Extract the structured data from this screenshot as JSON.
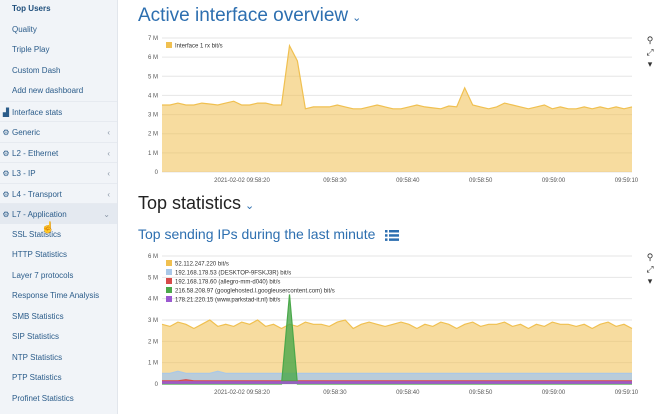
{
  "sidebar": {
    "items": [
      {
        "label": "Top Users",
        "kind": "top"
      },
      {
        "label": "Quality",
        "kind": "sub"
      },
      {
        "label": "Triple Play",
        "kind": "sub"
      },
      {
        "label": "Custom Dash",
        "kind": "sub"
      },
      {
        "label": "Add new dashboard",
        "kind": "sub"
      },
      {
        "label": "Interface stats",
        "kind": "grp",
        "icon": "chart-icon"
      },
      {
        "label": "Generic",
        "kind": "grp",
        "icon": "gear-icon",
        "chevron": "‹"
      },
      {
        "label": "L2 - Ethernet",
        "kind": "grp",
        "icon": "gear-icon",
        "chevron": "‹"
      },
      {
        "label": "L3 - IP",
        "kind": "grp",
        "icon": "gear-icon",
        "chevron": "‹"
      },
      {
        "label": "L4 - Transport",
        "kind": "grp",
        "icon": "gear-icon",
        "chevron": "‹"
      },
      {
        "label": "L7 - Application",
        "kind": "grp",
        "icon": "gear-icon",
        "chevron": "⌄",
        "active": true
      },
      {
        "label": "SSL Statistics",
        "kind": "sub"
      },
      {
        "label": "HTTP Statistics",
        "kind": "sub"
      },
      {
        "label": "Layer 7 protocols",
        "kind": "sub"
      },
      {
        "label": "Response Time Analysis",
        "kind": "sub"
      },
      {
        "label": "SMB Statistics",
        "kind": "sub"
      },
      {
        "label": "SIP Statistics",
        "kind": "sub"
      },
      {
        "label": "NTP Statistics",
        "kind": "sub"
      },
      {
        "label": "PTP Statistics",
        "kind": "sub"
      },
      {
        "label": "Profinet Statistics",
        "kind": "sub"
      }
    ]
  },
  "main": {
    "title": "Active interface overview",
    "top_stats_title": "Top statistics",
    "top_sending_title": "Top sending IPs during the last minute"
  },
  "tools": {
    "zoom": "⚲",
    "expand": "⤢",
    "menu": "▾"
  },
  "colors": {
    "accent": "#2d6fb0",
    "area_fill": "#fbe3a6",
    "area_line": "#f0c050"
  },
  "chart_data": [
    {
      "type": "area",
      "title": "",
      "yticks": [
        "0",
        "1 M",
        "2 M",
        "3 M",
        "4 M",
        "5 M",
        "6 M",
        "7 M"
      ],
      "ylim": [
        0,
        7
      ],
      "unit": "M bit/s",
      "xticks": [
        "2021-02-02 09:58:20",
        "09:58:30",
        "09:58:40",
        "09:58:50",
        "09:59:00",
        "09:59:10"
      ],
      "series": [
        {
          "name": "Interface 1 rx bit/s",
          "color": "#f0c050",
          "values": [
            3.5,
            3.5,
            3.6,
            3.5,
            3.5,
            3.6,
            3.55,
            3.5,
            3.6,
            3.7,
            3.5,
            3.5,
            3.6,
            3.6,
            3.5,
            3.5,
            6.6,
            5.8,
            3.3,
            3.4,
            3.4,
            3.4,
            3.5,
            3.4,
            3.3,
            3.3,
            3.4,
            3.5,
            3.4,
            3.3,
            3.3,
            3.4,
            3.5,
            3.4,
            3.35,
            3.3,
            3.45,
            3.4,
            4.4,
            3.5,
            3.4,
            3.3,
            3.4,
            3.6,
            3.5,
            3.4,
            3.3,
            3.4,
            3.5,
            3.3,
            3.4,
            3.3,
            3.3,
            3.4,
            3.3,
            3.4,
            3.3,
            3.4,
            3.3,
            3.4
          ]
        }
      ]
    },
    {
      "type": "area",
      "title": "",
      "yticks": [
        "0",
        "1 M",
        "2 M",
        "3 M",
        "4 M",
        "5 M",
        "6 M"
      ],
      "ylim": [
        0,
        6
      ],
      "unit": "M bit/s",
      "xticks": [
        "2021-02-02 09:58:20",
        "09:58:30",
        "09:58:40",
        "09:58:50",
        "09:59:00",
        "09:59:10"
      ],
      "series": [
        {
          "name": "52.112.247.220 bit/s",
          "color": "#f0c050",
          "values": [
            2.8,
            2.7,
            2.9,
            2.8,
            2.6,
            2.8,
            3.0,
            2.7,
            2.8,
            2.7,
            2.9,
            2.8,
            3.0,
            2.7,
            2.8,
            2.6,
            2.8,
            2.7,
            2.9,
            2.8,
            2.8,
            2.7,
            2.9,
            3.0,
            2.6,
            2.8,
            2.9,
            2.8,
            2.7,
            2.8,
            2.9,
            2.8,
            2.6,
            2.8,
            2.7,
            2.9,
            2.8,
            2.6,
            2.8,
            2.9,
            2.7,
            2.8,
            2.8,
            2.9,
            2.7,
            2.8,
            2.6,
            2.8,
            2.7,
            2.9,
            2.8,
            2.8,
            2.7,
            2.8,
            2.6,
            2.8,
            2.9,
            2.7,
            2.8,
            2.6
          ]
        },
        {
          "name": "192.168.178.53 (DESKTOP-9FSKJ3R) bit/s",
          "color": "#a9c8e8",
          "values": [
            0.5,
            0.5,
            0.6,
            0.5,
            0.5,
            0.5,
            0.5,
            0.6,
            0.5,
            0.5,
            0.5,
            0.5,
            0.5,
            0.5,
            0.5,
            0.5,
            0.5,
            0.5,
            0.5,
            0.5,
            0.5,
            0.5,
            0.5,
            0.5,
            0.5,
            0.5,
            0.5,
            0.5,
            0.5,
            0.5,
            0.5,
            0.5,
            0.5,
            0.5,
            0.5,
            0.5,
            0.5,
            0.5,
            0.5,
            0.5,
            0.5,
            0.5,
            0.5,
            0.5,
            0.5,
            0.5,
            0.5,
            0.5,
            0.5,
            0.5,
            0.5,
            0.5,
            0.5,
            0.5,
            0.5,
            0.5,
            0.5,
            0.5,
            0.5,
            0.5
          ]
        },
        {
          "name": "192.168.178.60 (allegro-mm-d040) bit/s",
          "color": "#d64a4a",
          "values": [
            0.15,
            0.15,
            0.15,
            0.2,
            0.15,
            0.15,
            0.15,
            0.15,
            0.15,
            0.15,
            0.15,
            0.15,
            0.15,
            0.15,
            0.15,
            0.15,
            0.15,
            0.15,
            0.15,
            0.15,
            0.15,
            0.15,
            0.15,
            0.15,
            0.15,
            0.15,
            0.15,
            0.15,
            0.15,
            0.15,
            0.15,
            0.15,
            0.15,
            0.15,
            0.15,
            0.15,
            0.15,
            0.15,
            0.15,
            0.15,
            0.15,
            0.15,
            0.15,
            0.15,
            0.15,
            0.15,
            0.15,
            0.15,
            0.15,
            0.15,
            0.15,
            0.15,
            0.15,
            0.15,
            0.15,
            0.15,
            0.15,
            0.15,
            0.15,
            0.15
          ]
        },
        {
          "name": "216.58.208.97 (googlehosted.l.googleusercontent.com) bit/s",
          "color": "#4aa84a",
          "values": [
            0,
            0,
            0,
            0,
            0,
            0,
            0,
            0,
            0,
            0,
            0,
            0,
            0,
            0,
            0,
            0,
            4.2,
            0,
            0,
            0,
            0,
            0,
            0,
            0,
            0,
            0,
            0,
            0,
            0,
            0,
            0,
            0,
            0,
            0,
            0,
            0,
            0,
            0,
            0,
            0,
            0,
            0,
            0,
            0,
            0,
            0,
            0,
            0,
            0,
            0,
            0,
            0,
            0,
            0,
            0,
            0,
            0,
            0,
            0,
            0
          ]
        },
        {
          "name": "178.21.220.15 (www.parkstad-it.nl) bit/s",
          "color": "#9b59d0",
          "values": [
            0.1,
            0.1,
            0.1,
            0.1,
            0.1,
            0.1,
            0.1,
            0.1,
            0.1,
            0.1,
            0.1,
            0.1,
            0.1,
            0.1,
            0.1,
            0.1,
            0.1,
            0.1,
            0.1,
            0.1,
            0.1,
            0.1,
            0.1,
            0.1,
            0.1,
            0.1,
            0.1,
            0.1,
            0.1,
            0.1,
            0.1,
            0.1,
            0.1,
            0.1,
            0.1,
            0.1,
            0.1,
            0.1,
            0.1,
            0.1,
            0.1,
            0.1,
            0.1,
            0.1,
            0.1,
            0.1,
            0.1,
            0.1,
            0.1,
            0.1,
            0.1,
            0.1,
            0.1,
            0.1,
            0.1,
            0.1,
            0.1,
            0.1,
            0.1,
            0.1
          ]
        }
      ]
    }
  ]
}
